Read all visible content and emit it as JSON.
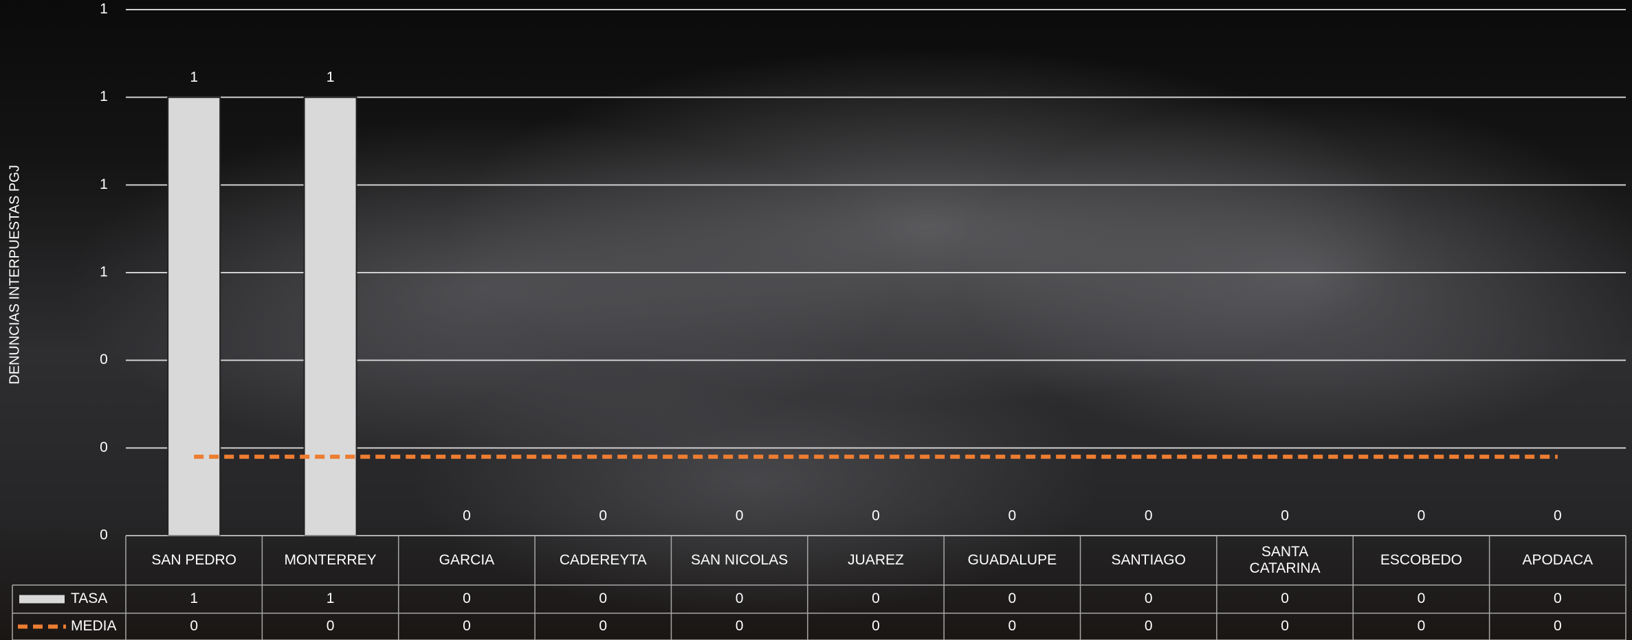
{
  "chart_data": {
    "type": "bar",
    "y_label": "DENUNCIAS INTERPUESTAS PGJ",
    "categories": [
      "SAN PEDRO",
      "MONTERREY",
      "GARCIA",
      "CADEREYTA",
      "SAN NICOLAS",
      "JUAREZ",
      "GUADALUPE",
      "SANTIAGO",
      "SANTA CATARINA",
      "ESCOBEDO",
      "APODACA"
    ],
    "series": [
      {
        "name": "TASA",
        "type": "bar",
        "color": "#d9d9d9",
        "values": [
          1,
          1,
          0,
          0,
          0,
          0,
          0,
          0,
          0,
          0,
          0
        ]
      },
      {
        "name": "MEDIA",
        "type": "line",
        "color": "#ed7d31",
        "values": [
          0.18,
          0.18,
          0.18,
          0.18,
          0.18,
          0.18,
          0.18,
          0.18,
          0.18,
          0.18,
          0.18
        ],
        "value_labels": [
          "0",
          "0",
          "0",
          "0",
          "0",
          "0",
          "0",
          "0",
          "0",
          "0",
          "0"
        ]
      }
    ],
    "ylim": [
      0,
      1.2
    ],
    "yticks": [
      0,
      {
        "value": 0.2,
        "label": "0"
      },
      {
        "value": 0.4,
        "label": "0"
      },
      {
        "value": 0.6,
        "label": "1"
      },
      {
        "value": 0.8,
        "label": "1"
      },
      1,
      {
        "value": 1.2,
        "label": "1"
      }
    ],
    "grid": true
  }
}
